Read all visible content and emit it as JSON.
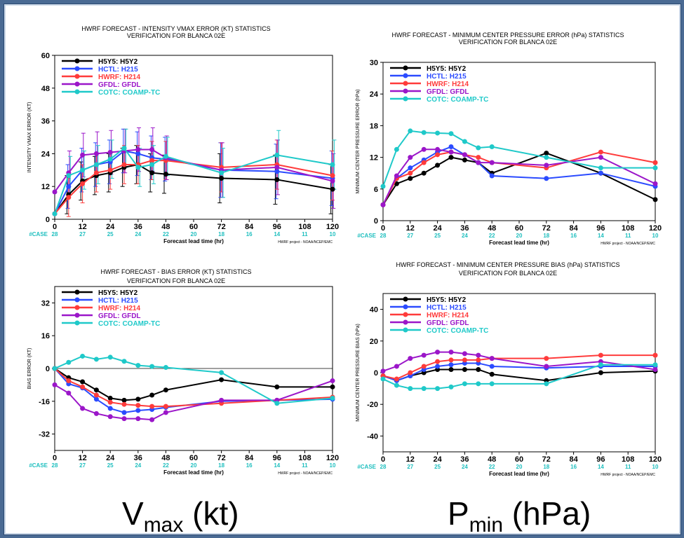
{
  "series_styles": [
    {
      "color": "#000000"
    },
    {
      "color": "#2b4bff"
    },
    {
      "color": "#ff3b3b"
    },
    {
      "color": "#9b16c9"
    },
    {
      "color": "#1fc9c9"
    }
  ],
  "x_axis": {
    "label": "Forecast lead time (hr)",
    "ticks": [
      "0",
      "12",
      "24",
      "36",
      "48",
      "60",
      "72",
      "84",
      "96",
      "108",
      "120"
    ],
    "cases_prefix": "#CASE",
    "cases": [
      "28",
      "27",
      "25",
      "24",
      "22",
      "20",
      "18",
      "16",
      "14",
      "11",
      "10"
    ]
  },
  "credit": "HWRF project - NOAA/NCEP/EMC",
  "bottom_labels": {
    "left": {
      "main": "V",
      "sub": "max",
      "unit": " (kt)"
    },
    "right": {
      "main": "P",
      "sub": "min",
      "unit": " (hPa)"
    }
  },
  "chart_data": [
    {
      "type": "line",
      "title": "HWRF FORECAST - INTENSITY VMAX ERROR (KT) STATISTICS",
      "subtitle": "VERIFICATION FOR BLANCA 02E",
      "ylabel": "INTENSITY VMAX ERROR (KT)",
      "ylim": [
        0,
        60
      ],
      "yticks": [
        "0",
        "12",
        "24",
        "36",
        "48",
        "60"
      ],
      "legend_position": "top-left",
      "error_bars": true,
      "x": [
        0,
        6,
        12,
        18,
        24,
        30,
        36,
        42,
        48,
        72,
        96,
        120
      ],
      "series": [
        {
          "name": "H5Y5: H5Y2",
          "values": [
            2,
            9,
            14,
            16,
            17,
            19,
            20,
            17,
            16.5,
            15,
            14.5,
            11
          ]
        },
        {
          "name": "HCTL: H215",
          "values": [
            2,
            12,
            18,
            20,
            21,
            25,
            24,
            22.5,
            22,
            18,
            17.5,
            15
          ]
        },
        {
          "name": "HWRF: H214",
          "values": [
            2,
            8,
            13,
            17,
            18,
            20,
            20,
            21.5,
            21.5,
            19,
            20,
            16
          ]
        },
        {
          "name": "GFDL: GFDL",
          "values": [
            10,
            17,
            23.5,
            24,
            24.5,
            25,
            25.5,
            25.5,
            22.5,
            18,
            19,
            14
          ]
        },
        {
          "name": "COTC: COAMP-TC",
          "values": [
            2,
            16,
            18,
            20,
            22,
            26,
            19,
            20,
            23,
            17,
            23.5,
            20
          ]
        }
      ]
    },
    {
      "type": "line",
      "title": "HWRF FORECAST - MINIMUM CENTER PRESSURE ERROR (hPa) STATISTICS",
      "subtitle": "VERIFICATION FOR BLANCA 02E",
      "ylabel": "MINIMUM CENTER PRESSURE ERROR (hPa)",
      "ylim": [
        0,
        30
      ],
      "yticks": [
        "0",
        "6",
        "12",
        "18",
        "24",
        "30"
      ],
      "legend_position": "top-left",
      "error_bars": false,
      "x": [
        0,
        6,
        12,
        18,
        24,
        30,
        36,
        42,
        48,
        72,
        96,
        120
      ],
      "series": [
        {
          "name": "H5Y5: H5Y2",
          "values": [
            3,
            7,
            8,
            9,
            10.5,
            12,
            11.5,
            11,
            9,
            12.8,
            9,
            4
          ]
        },
        {
          "name": "HCTL: H215",
          "values": [
            3,
            8,
            10,
            11.5,
            13,
            14,
            12.5,
            11,
            8.5,
            8,
            9,
            6.5
          ]
        },
        {
          "name": "HWRF: H214",
          "values": [
            3,
            8,
            9,
            11,
            12.5,
            13,
            12.5,
            12,
            11,
            10,
            13,
            11
          ]
        },
        {
          "name": "GFDL: GFDL",
          "values": [
            3,
            8.5,
            12,
            13.5,
            13.5,
            13,
            12.5,
            11,
            11,
            10.5,
            12,
            7
          ]
        },
        {
          "name": "COTC: COAMP-TC",
          "values": [
            6.5,
            13.5,
            17,
            16.7,
            16.6,
            16.5,
            15,
            13.8,
            14,
            12,
            10,
            10
          ]
        }
      ]
    },
    {
      "type": "line",
      "title": "HWRF FORECAST - BIAS ERROR (KT) STATISTICS",
      "subtitle": "VERIFICATION FOR BLANCA 02E",
      "ylabel": "BIAS ERROR (KT)",
      "ylim": [
        -40,
        40
      ],
      "yticks": [
        "-32",
        "-16",
        "0",
        "16",
        "32"
      ],
      "ytick_values": [
        -32,
        -16,
        0,
        16,
        32
      ],
      "legend_position": "top-left",
      "error_bars": false,
      "zero_line": true,
      "x": [
        0,
        6,
        12,
        18,
        24,
        30,
        36,
        42,
        48,
        72,
        96,
        120
      ],
      "series": [
        {
          "name": "H5Y5: H5Y2",
          "values": [
            0,
            -4.5,
            -6.5,
            -10.5,
            -14.5,
            -15.5,
            -15,
            -13,
            -10.5,
            -5.5,
            -9,
            -9
          ]
        },
        {
          "name": "HCTL: H215",
          "values": [
            0,
            -7.5,
            -9.5,
            -15,
            -19.5,
            -21.5,
            -20.5,
            -20,
            -19,
            -16,
            -15.5,
            -15
          ]
        },
        {
          "name": "HWRF: H214",
          "values": [
            0,
            -6,
            -9,
            -13,
            -16.5,
            -17.5,
            -18,
            -18.5,
            -18.5,
            -17,
            -15.5,
            -14
          ]
        },
        {
          "name": "GFDL: GFDL",
          "values": [
            -8,
            -12,
            -19.5,
            -22,
            -23.5,
            -24.5,
            -24.5,
            -25,
            -21.5,
            -15.5,
            -15.5,
            -6
          ]
        },
        {
          "name": "COTC: COAMP-TC",
          "values": [
            0,
            3,
            6,
            4.5,
            5.5,
            3.5,
            1.5,
            1,
            0.5,
            -2,
            -17,
            -14.5
          ]
        }
      ]
    },
    {
      "type": "line",
      "title": "HWRF FORECAST - MINIMUM CENTER PRESSURE BIAS (hPa) STATISTICS",
      "subtitle": "VERIFICATION FOR BLANCA 02E",
      "ylabel": "MINIMUM CENTER PRESSURE BIAS (hPa)",
      "ylim": [
        -50,
        50
      ],
      "yticks": [
        "-40",
        "-20",
        "0",
        "20",
        "40"
      ],
      "ytick_values": [
        -40,
        -20,
        0,
        20,
        40
      ],
      "legend_position": "top-left",
      "error_bars": false,
      "x": [
        0,
        6,
        12,
        18,
        24,
        30,
        36,
        42,
        48,
        72,
        96,
        120
      ],
      "series": [
        {
          "name": "H5Y5: H5Y2",
          "values": [
            -2,
            -5,
            -2,
            0,
            2,
            2,
            2,
            2,
            -1,
            -5,
            0,
            1
          ]
        },
        {
          "name": "HCTL: H215",
          "values": [
            -2,
            -5,
            -2,
            2,
            4,
            5,
            6,
            6,
            4,
            3,
            4,
            4
          ]
        },
        {
          "name": "HWRF: H214",
          "values": [
            -2,
            -4,
            0,
            4,
            7,
            8,
            8,
            8,
            9,
            9,
            11,
            11
          ]
        },
        {
          "name": "GFDL: GFDL",
          "values": [
            1,
            4,
            9,
            11,
            13,
            13,
            12,
            11,
            9,
            4,
            7,
            2
          ]
        },
        {
          "name": "COTC: COAMP-TC",
          "values": [
            -4,
            -8,
            -10,
            -10,
            -10,
            -9,
            -7,
            -7,
            -7,
            -7,
            5,
            5
          ]
        }
      ]
    }
  ]
}
